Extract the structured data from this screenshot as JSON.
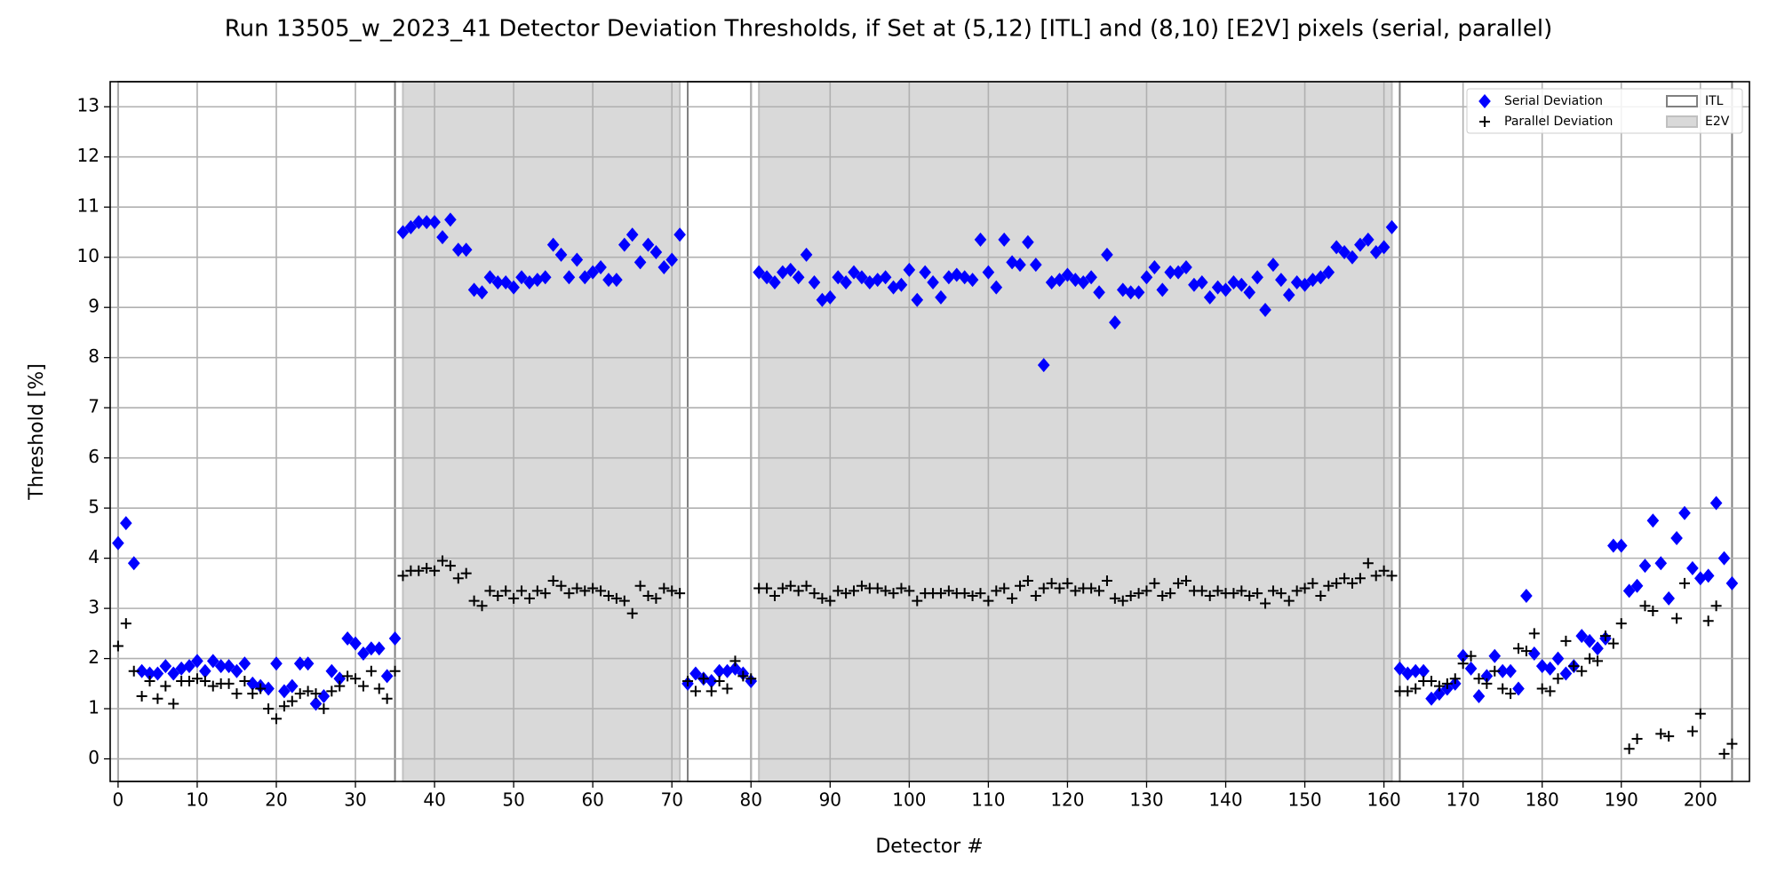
{
  "chart_data": {
    "type": "scatter",
    "title": "Run 13505_w_2023_41 Detector Deviation Thresholds, if Set at (5,12) [ITL] and (8,10) [E2V] pixels (serial, parallel)",
    "x_label": "Detector #",
    "y_label": "Threshold [%]",
    "xlim": [
      -1,
      206.2
    ],
    "ylim": [
      -0.45,
      13.5
    ],
    "xticks": [
      0,
      10,
      20,
      30,
      40,
      50,
      60,
      70,
      80,
      90,
      100,
      110,
      120,
      130,
      140,
      150,
      160,
      170,
      180,
      190,
      200
    ],
    "yticks": [
      0,
      1,
      2,
      3,
      4,
      5,
      6,
      7,
      8,
      9,
      10,
      11,
      12,
      13
    ],
    "grid": true,
    "legend": "upper right",
    "region_types": [
      {
        "name": "ITL",
        "fill": "none",
        "edge": "#808080"
      },
      {
        "name": "E2V",
        "fill": "#d9d9d9",
        "edge": "#c0c0c0"
      }
    ],
    "regions": [
      {
        "kind": 0,
        "start": 0,
        "end": 35
      },
      {
        "kind": 1,
        "start": 36,
        "end": 71
      },
      {
        "kind": 0,
        "start": 72,
        "end": 80
      },
      {
        "kind": 1,
        "start": 81,
        "end": 161
      },
      {
        "kind": 0,
        "start": 162,
        "end": 204
      }
    ],
    "x": [
      0,
      1,
      2,
      3,
      4,
      5,
      6,
      7,
      8,
      9,
      10,
      11,
      12,
      13,
      14,
      15,
      16,
      17,
      18,
      19,
      20,
      21,
      22,
      23,
      24,
      25,
      26,
      27,
      28,
      29,
      30,
      31,
      32,
      33,
      34,
      35,
      36,
      37,
      38,
      39,
      40,
      41,
      42,
      43,
      44,
      45,
      46,
      47,
      48,
      49,
      50,
      51,
      52,
      53,
      54,
      55,
      56,
      57,
      58,
      59,
      60,
      61,
      62,
      63,
      64,
      65,
      66,
      67,
      68,
      69,
      70,
      71,
      72,
      73,
      74,
      75,
      76,
      77,
      78,
      79,
      80,
      81,
      82,
      83,
      84,
      85,
      86,
      87,
      88,
      89,
      90,
      91,
      92,
      93,
      94,
      95,
      96,
      97,
      98,
      99,
      100,
      101,
      102,
      103,
      104,
      105,
      106,
      107,
      108,
      109,
      110,
      111,
      112,
      113,
      114,
      115,
      116,
      117,
      118,
      119,
      120,
      121,
      122,
      123,
      124,
      125,
      126,
      127,
      128,
      129,
      130,
      131,
      132,
      133,
      134,
      135,
      136,
      137,
      138,
      139,
      140,
      141,
      142,
      143,
      144,
      145,
      146,
      147,
      148,
      149,
      150,
      151,
      152,
      153,
      154,
      155,
      156,
      157,
      158,
      159,
      160,
      161,
      162,
      163,
      164,
      165,
      166,
      167,
      168,
      169,
      170,
      171,
      172,
      173,
      174,
      175,
      176,
      177,
      178,
      179,
      180,
      181,
      182,
      183,
      184,
      185,
      186,
      187,
      188,
      189,
      190,
      191,
      192,
      193,
      194,
      195,
      196,
      197,
      198,
      199,
      200,
      201,
      202,
      203,
      204
    ],
    "series": [
      {
        "name": "Serial Deviation",
        "color": "#0000ff",
        "marker": "diamond",
        "values": [
          4.3,
          4.7,
          3.9,
          1.75,
          1.7,
          1.7,
          1.85,
          1.7,
          1.8,
          1.85,
          1.95,
          1.75,
          1.95,
          1.85,
          1.85,
          1.75,
          1.9,
          1.5,
          1.45,
          1.4,
          1.9,
          1.35,
          1.45,
          1.9,
          1.9,
          1.1,
          1.25,
          1.75,
          1.6,
          2.4,
          2.3,
          2.1,
          2.2,
          2.2,
          1.65,
          2.4,
          10.5,
          10.6,
          10.7,
          10.7,
          10.7,
          10.4,
          10.75,
          10.15,
          10.15,
          9.35,
          9.3,
          9.6,
          9.5,
          9.5,
          9.4,
          9.6,
          9.5,
          9.55,
          9.6,
          10.25,
          10.05,
          9.6,
          9.95,
          9.6,
          9.7,
          9.8,
          9.55,
          9.55,
          10.25,
          10.45,
          9.9,
          10.25,
          10.1,
          9.8,
          9.95,
          10.45,
          1.5,
          1.7,
          1.6,
          1.55,
          1.75,
          1.75,
          1.8,
          1.7,
          1.55,
          9.7,
          9.6,
          9.5,
          9.7,
          9.75,
          9.6,
          10.05,
          9.5,
          9.15,
          9.2,
          9.6,
          9.5,
          9.7,
          9.6,
          9.5,
          9.55,
          9.6,
          9.4,
          9.45,
          9.75,
          9.15,
          9.7,
          9.5,
          9.2,
          9.6,
          9.65,
          9.6,
          9.55,
          10.35,
          9.7,
          9.4,
          10.35,
          9.9,
          9.85,
          10.3,
          9.85,
          7.85,
          9.5,
          9.55,
          9.65,
          9.55,
          9.5,
          9.6,
          9.3,
          10.05,
          8.7,
          9.35,
          9.3,
          9.3,
          9.6,
          9.8,
          9.35,
          9.7,
          9.7,
          9.8,
          9.45,
          9.5,
          9.2,
          9.4,
          9.35,
          9.5,
          9.45,
          9.3,
          9.6,
          8.95,
          9.85,
          9.55,
          9.25,
          9.5,
          9.45,
          9.55,
          9.6,
          9.7,
          10.2,
          10.1,
          10.0,
          10.25,
          10.35,
          10.1,
          10.2,
          10.6,
          1.8,
          1.7,
          1.75,
          1.75,
          1.2,
          1.3,
          1.4,
          1.5,
          2.05,
          1.8,
          1.25,
          1.65,
          2.05,
          1.75,
          1.75,
          1.4,
          3.25,
          2.1,
          1.85,
          1.8,
          2.0,
          1.7,
          1.85,
          2.45,
          2.35,
          2.2,
          2.4,
          4.25,
          4.25,
          3.35,
          3.45,
          3.85,
          4.75,
          3.9,
          3.2,
          4.4,
          4.9,
          3.8,
          3.6,
          3.65,
          5.1,
          4.0,
          3.5
        ]
      },
      {
        "name": "Parallel Deviation",
        "color": "#000000",
        "marker": "plus",
        "values": [
          2.25,
          2.7,
          1.75,
          1.25,
          1.55,
          1.2,
          1.45,
          1.1,
          1.55,
          1.55,
          1.6,
          1.55,
          1.45,
          1.5,
          1.5,
          1.3,
          1.55,
          1.3,
          1.4,
          1.0,
          0.8,
          1.05,
          1.15,
          1.3,
          1.35,
          1.3,
          1.0,
          1.35,
          1.45,
          1.65,
          1.6,
          1.45,
          1.75,
          1.4,
          1.2,
          1.75,
          3.65,
          3.75,
          3.75,
          3.8,
          3.75,
          3.95,
          3.85,
          3.6,
          3.7,
          3.15,
          3.05,
          3.35,
          3.25,
          3.35,
          3.2,
          3.35,
          3.2,
          3.35,
          3.3,
          3.55,
          3.45,
          3.3,
          3.4,
          3.35,
          3.4,
          3.35,
          3.25,
          3.2,
          3.15,
          2.9,
          3.45,
          3.25,
          3.2,
          3.4,
          3.35,
          3.3,
          1.55,
          1.35,
          1.6,
          1.35,
          1.55,
          1.4,
          1.95,
          1.65,
          1.6,
          3.4,
          3.4,
          3.25,
          3.4,
          3.45,
          3.35,
          3.45,
          3.3,
          3.2,
          3.15,
          3.35,
          3.3,
          3.35,
          3.45,
          3.4,
          3.4,
          3.35,
          3.3,
          3.4,
          3.35,
          3.15,
          3.3,
          3.3,
          3.3,
          3.35,
          3.3,
          3.3,
          3.25,
          3.3,
          3.15,
          3.35,
          3.4,
          3.2,
          3.45,
          3.55,
          3.25,
          3.4,
          3.5,
          3.4,
          3.5,
          3.35,
          3.4,
          3.4,
          3.35,
          3.55,
          3.2,
          3.15,
          3.25,
          3.3,
          3.35,
          3.5,
          3.25,
          3.3,
          3.5,
          3.55,
          3.35,
          3.35,
          3.25,
          3.35,
          3.3,
          3.3,
          3.35,
          3.25,
          3.3,
          3.1,
          3.35,
          3.3,
          3.15,
          3.35,
          3.4,
          3.5,
          3.25,
          3.45,
          3.5,
          3.6,
          3.5,
          3.6,
          3.9,
          3.65,
          3.75,
          3.65,
          1.35,
          1.35,
          1.4,
          1.55,
          1.55,
          1.45,
          1.5,
          1.6,
          1.9,
          2.05,
          1.6,
          1.5,
          1.75,
          1.4,
          1.3,
          2.2,
          2.15,
          2.5,
          1.4,
          1.35,
          1.6,
          2.35,
          1.85,
          1.75,
          2.0,
          1.95,
          2.45,
          2.3,
          2.7,
          0.2,
          0.4,
          3.05,
          2.95,
          0.5,
          0.45,
          2.8,
          3.5,
          0.55,
          0.9,
          2.75,
          3.05,
          0.1,
          0.3
        ]
      }
    ]
  }
}
